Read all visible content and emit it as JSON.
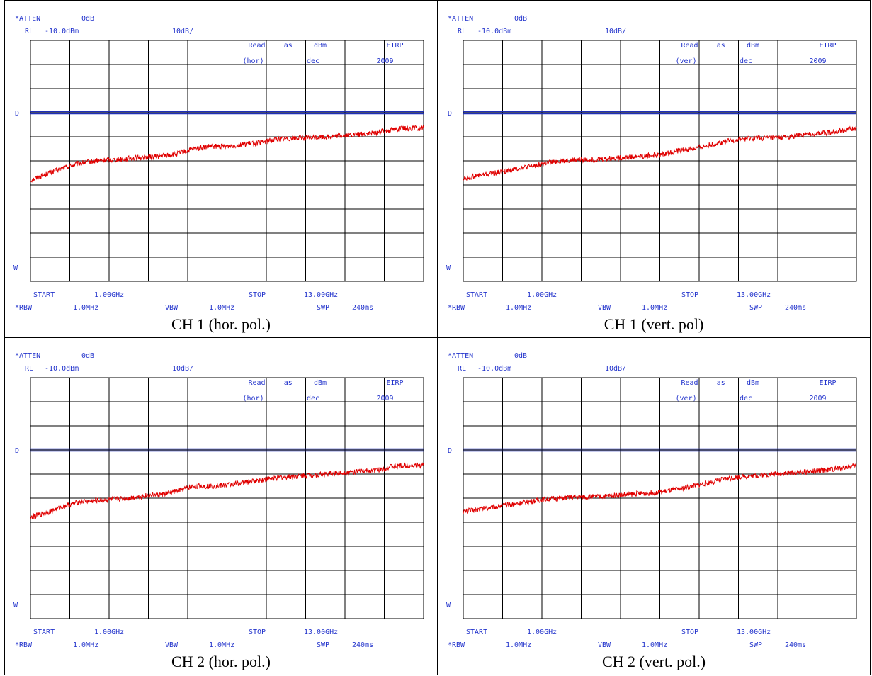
{
  "colors": {
    "text": "#2233cc",
    "line": "#1f2fb8",
    "trace": "#e00000",
    "grid": "#000000"
  },
  "panels": [
    {
      "caption": "CH 1 (hor. pol.)",
      "header": {
        "atten": "*ATTEN",
        "atten_val": "0dB",
        "rl": "RL",
        "rl_val": "-10.0dBm",
        "scale": "10dB/"
      },
      "legend": {
        "read": "Read",
        "as": "as",
        "unit": "dBm",
        "eirp": "EIRP",
        "pol": "(hor)",
        "month": "dec",
        "year": "2009"
      },
      "markers": {
        "d": "D",
        "w": "W"
      },
      "footer": {
        "start": "START",
        "start_val": "1.00GHz",
        "stop": "STOP",
        "stop_val": "13.00GHz",
        "rbw": "*RBW",
        "rbw_val": "1.0MHz",
        "vbw": "VBW",
        "vbw_val": "1.0MHz",
        "swp": "SWP",
        "swp_val": "240ms"
      }
    },
    {
      "caption": "CH 1 (vert. pol)",
      "header": {
        "atten": "*ATTEN",
        "atten_val": "0dB",
        "rl": "RL",
        "rl_val": "-10.0dBm",
        "scale": "10dB/"
      },
      "legend": {
        "read": "Read",
        "as": "as",
        "unit": "dBm",
        "eirp": "EIRP",
        "pol": "(ver)",
        "month": "dec",
        "year": "2009"
      },
      "markers": {
        "d": "D",
        "w": "W"
      },
      "footer": {
        "start": "START",
        "start_val": "1.00GHz",
        "stop": "STOP",
        "stop_val": "13.00GHz",
        "rbw": "*RBW",
        "rbw_val": "1.0MHz",
        "vbw": "VBW",
        "vbw_val": "1.0MHz",
        "swp": "SWP",
        "swp_val": "240ms"
      }
    },
    {
      "caption": "CH 2 (hor. pol.)",
      "header": {
        "atten": "*ATTEN",
        "atten_val": "0dB",
        "rl": "RL",
        "rl_val": "-10.0dBm",
        "scale": "10dB/"
      },
      "legend": {
        "read": "Read",
        "as": "as",
        "unit": "dBm",
        "eirp": "EIRP",
        "pol": "(hor)",
        "month": "dec",
        "year": "2009"
      },
      "markers": {
        "d": "D",
        "w": "W"
      },
      "footer": {
        "start": "START",
        "start_val": "1.00GHz",
        "stop": "STOP",
        "stop_val": "13.00GHz",
        "rbw": "*RBW",
        "rbw_val": "1.0MHz",
        "vbw": "VBW",
        "vbw_val": "1.0MHz",
        "swp": "SWP",
        "swp_val": "240ms"
      }
    },
    {
      "caption": "CH 2 (vert. pol.)",
      "header": {
        "atten": "*ATTEN",
        "atten_val": "0dB",
        "rl": "RL",
        "rl_val": "-10.0dBm",
        "scale": "10dB/"
      },
      "legend": {
        "read": "Read",
        "as": "as",
        "unit": "dBm",
        "eirp": "EIRP",
        "pol": "(ver)",
        "month": "dec",
        "year": "2009"
      },
      "markers": {
        "d": "D",
        "w": "W"
      },
      "footer": {
        "start": "START",
        "start_val": "1.00GHz",
        "stop": "STOP",
        "stop_val": "13.00GHz",
        "rbw": "*RBW",
        "rbw_val": "1.0MHz",
        "vbw": "VBW",
        "vbw_val": "1.0MHz",
        "swp": "SWP",
        "swp_val": "240ms"
      }
    }
  ],
  "chart_data": [
    {
      "type": "line",
      "x_unit": "GHz",
      "y_unit": "dBm",
      "xlim": [
        1,
        13
      ],
      "ylim": [
        -110,
        -10
      ],
      "grid": true,
      "x_divisions": 10,
      "y_divisions": 10,
      "limit_line": -40,
      "series": [
        {
          "x": [
            1,
            1.5,
            2,
            2.5,
            3,
            3.5,
            4,
            4.5,
            5,
            5.5,
            6,
            6.5,
            7,
            7.5,
            8,
            8.5,
            9,
            9.5,
            10,
            10.5,
            11,
            11.5,
            12,
            12.5,
            13
          ],
          "y": [
            -68,
            -65.5,
            -63,
            -61,
            -60,
            -59.5,
            -59,
            -58.5,
            -58,
            -57,
            -55,
            -54,
            -54,
            -53,
            -52.5,
            -51,
            -50.5,
            -50.5,
            -50,
            -49.5,
            -49,
            -48.5,
            -47,
            -46.5,
            -46.5
          ]
        }
      ]
    },
    {
      "type": "line",
      "x_unit": "GHz",
      "y_unit": "dBm",
      "xlim": [
        1,
        13
      ],
      "ylim": [
        -110,
        -10
      ],
      "grid": true,
      "x_divisions": 10,
      "y_divisions": 10,
      "limit_line": -40,
      "series": [
        {
          "x": [
            1,
            1.5,
            2,
            2.5,
            3,
            3.5,
            4,
            4.5,
            5,
            5.5,
            6,
            6.5,
            7,
            7.5,
            8,
            8.5,
            9,
            9.5,
            10,
            10.5,
            11,
            11.5,
            12,
            12.5,
            13
          ],
          "y": [
            -67.5,
            -66,
            -65,
            -63.5,
            -62.5,
            -61,
            -60,
            -59.5,
            -59.5,
            -59,
            -58.5,
            -58,
            -57.5,
            -56,
            -55,
            -53.5,
            -52,
            -51,
            -50.5,
            -50.5,
            -50,
            -49,
            -48.5,
            -47.5,
            -46.5
          ]
        }
      ]
    },
    {
      "type": "line",
      "x_unit": "GHz",
      "y_unit": "dBm",
      "xlim": [
        1,
        13
      ],
      "ylim": [
        -110,
        -10
      ],
      "grid": true,
      "x_divisions": 10,
      "y_divisions": 10,
      "limit_line": -40,
      "series": [
        {
          "x": [
            1,
            1.5,
            2,
            2.5,
            3,
            3.5,
            4,
            4.5,
            5,
            5.5,
            6,
            6.5,
            7,
            7.5,
            8,
            8.5,
            9,
            9.5,
            10,
            10.5,
            11,
            11.5,
            12,
            12.5,
            13
          ],
          "y": [
            -68,
            -66,
            -63.5,
            -61.5,
            -61,
            -60.5,
            -60,
            -59,
            -58.5,
            -57,
            -55,
            -55,
            -54.5,
            -53.5,
            -52.5,
            -51.5,
            -51,
            -50.5,
            -50,
            -49.5,
            -49,
            -48.5,
            -47,
            -46.5,
            -46.5
          ]
        }
      ]
    },
    {
      "type": "line",
      "x_unit": "GHz",
      "y_unit": "dBm",
      "xlim": [
        1,
        13
      ],
      "ylim": [
        -110,
        -10
      ],
      "grid": true,
      "x_divisions": 10,
      "y_divisions": 10,
      "limit_line": -40,
      "series": [
        {
          "x": [
            1,
            1.5,
            2,
            2.5,
            3,
            3.5,
            4,
            4.5,
            5,
            5.5,
            6,
            6.5,
            7,
            7.5,
            8,
            8.5,
            9,
            9.5,
            10,
            10.5,
            11,
            11.5,
            12,
            12.5,
            13
          ],
          "y": [
            -65.5,
            -64.5,
            -63.5,
            -62.5,
            -61.5,
            -60.5,
            -60,
            -59.5,
            -59.5,
            -59,
            -58.5,
            -58,
            -57.5,
            -56.5,
            -55,
            -53.5,
            -52,
            -51,
            -50.5,
            -50,
            -49.5,
            -49,
            -48.5,
            -47.5,
            -46.5
          ]
        }
      ]
    }
  ]
}
